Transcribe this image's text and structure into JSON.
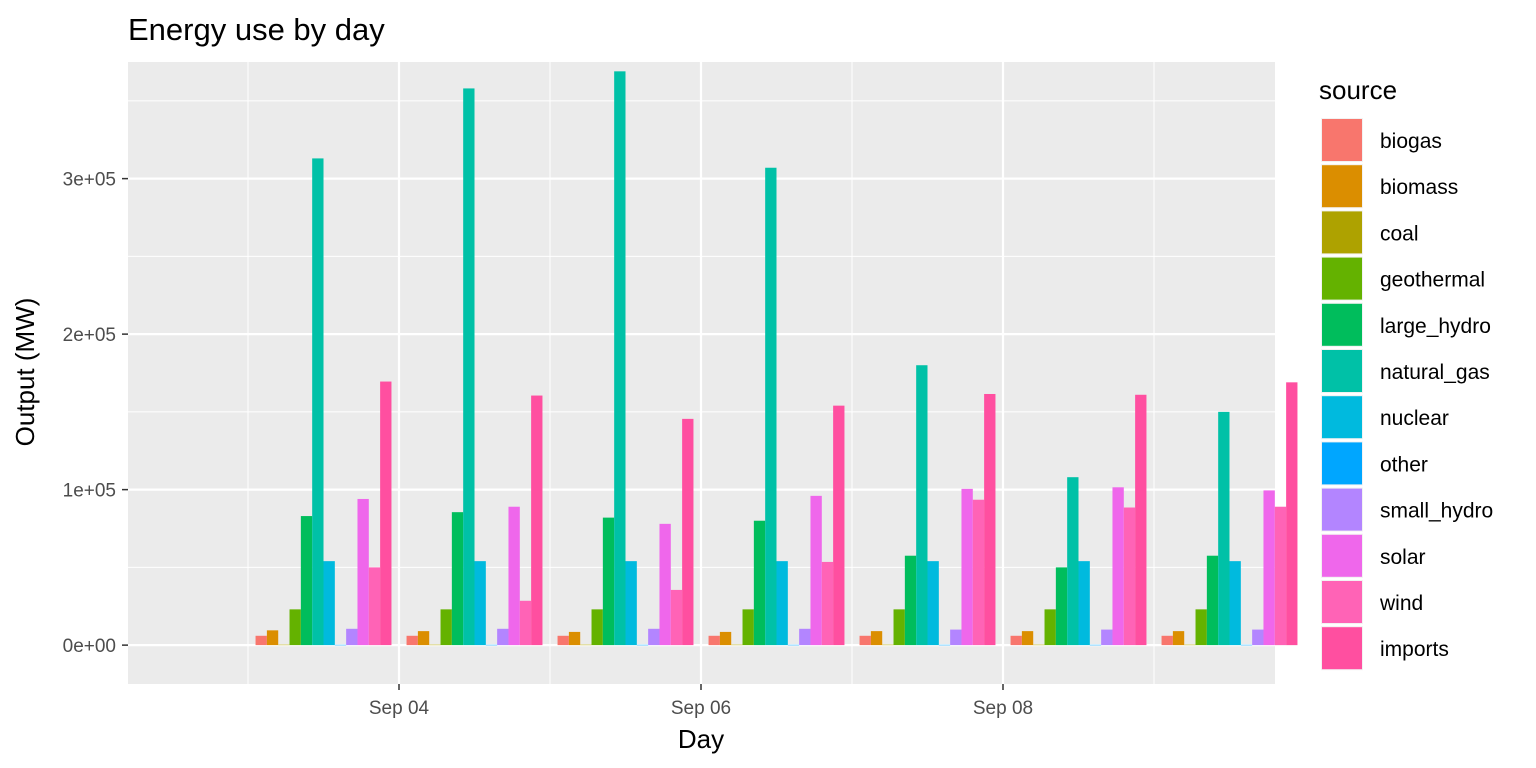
{
  "chart_data": {
    "type": "bar",
    "title": "Energy use by day",
    "xlabel": "Day",
    "ylabel": "Output (MW)",
    "ylim": [
      -25000,
      375000
    ],
    "yticks": [
      0,
      100000,
      200000,
      300000
    ],
    "ytick_labels": [
      "0e+00",
      "1e+05",
      "2e+05",
      "3e+05"
    ],
    "x_dates": [
      "2018-09-03",
      "2018-09-04",
      "2018-09-05",
      "2018-09-06",
      "2018-09-07",
      "2018-09-08",
      "2018-09-09"
    ],
    "xticks": [
      "2018-09-04",
      "2018-09-06",
      "2018-09-08"
    ],
    "xtick_labels": [
      "Sep 04",
      "Sep 06",
      "Sep 08"
    ],
    "grid": true,
    "legend_title": "source",
    "legend_position": "right",
    "series": [
      {
        "name": "biogas",
        "color": "#F8766D",
        "values": [
          6000,
          6000,
          6000,
          6000,
          6000,
          6000,
          6000
        ]
      },
      {
        "name": "biomass",
        "color": "#DB8E00",
        "values": [
          9500,
          9000,
          8500,
          8500,
          9000,
          9000,
          9000
        ]
      },
      {
        "name": "coal",
        "color": "#AEA200",
        "values": [
          300,
          300,
          300,
          300,
          300,
          300,
          300
        ]
      },
      {
        "name": "geothermal",
        "color": "#64B200",
        "values": [
          23000,
          23000,
          23000,
          23000,
          23000,
          23000,
          23000
        ]
      },
      {
        "name": "large_hydro",
        "color": "#00BD5C",
        "values": [
          83000,
          85500,
          82000,
          80000,
          57500,
          50000,
          57500
        ]
      },
      {
        "name": "natural_gas",
        "color": "#00C1A7",
        "values": [
          313000,
          358000,
          369000,
          307000,
          180000,
          108000,
          150000
        ]
      },
      {
        "name": "nuclear",
        "color": "#00BADE",
        "values": [
          54000,
          54000,
          54000,
          54000,
          54000,
          54000,
          54000
        ]
      },
      {
        "name": "other",
        "color": "#00A6FF",
        "values": [
          200,
          200,
          200,
          200,
          200,
          200,
          200
        ]
      },
      {
        "name": "small_hydro",
        "color": "#B385FF",
        "values": [
          10500,
          10500,
          10500,
          10500,
          10000,
          10000,
          10000
        ]
      },
      {
        "name": "solar",
        "color": "#EF67EB",
        "values": [
          94000,
          89000,
          78000,
          96000,
          100500,
          101500,
          99500
        ]
      },
      {
        "name": "wind",
        "color": "#FF63B6",
        "values": [
          50000,
          28500,
          35500,
          53500,
          93500,
          88500,
          89000
        ]
      },
      {
        "name": "imports",
        "color": "#FF4FA0",
        "values": [
          169500,
          160500,
          145500,
          154000,
          161500,
          161000,
          169000
        ]
      }
    ]
  }
}
